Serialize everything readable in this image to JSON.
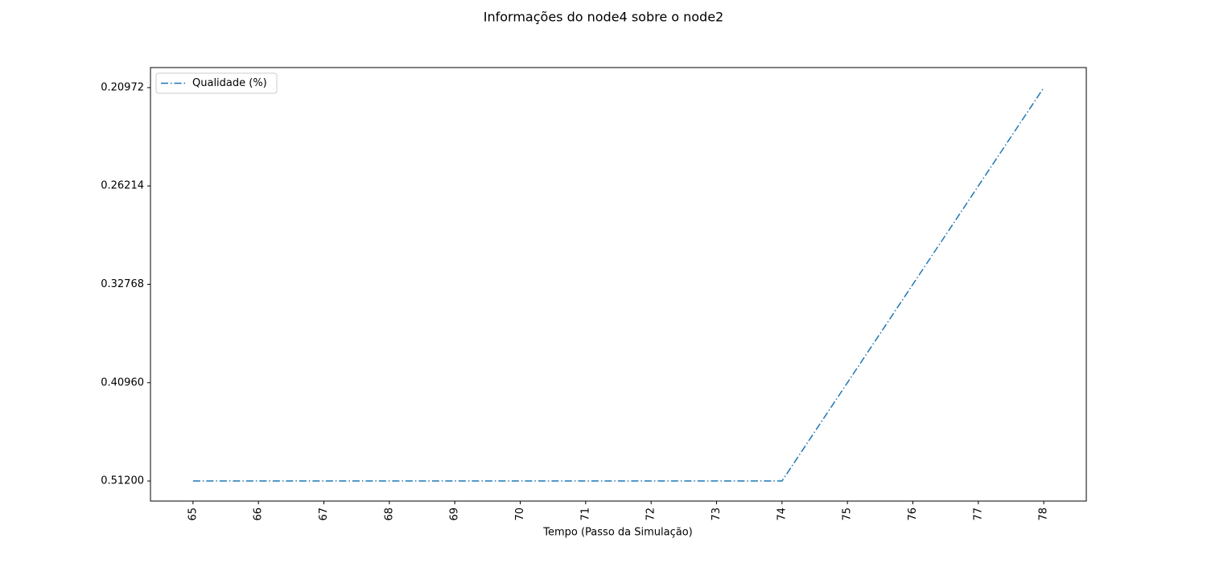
{
  "chart_data": {
    "type": "line",
    "title": "Informações do node4 sobre o node2",
    "xlabel": "Tempo (Passo da Simulação)",
    "x": [
      65,
      66,
      67,
      68,
      69,
      70,
      71,
      72,
      73,
      74,
      75,
      76,
      77,
      78
    ],
    "ycategories": [
      "0.51200",
      "0.40960",
      "0.32768",
      "0.26214",
      "0.20972"
    ],
    "series": [
      {
        "name": "Qualidade (%)",
        "color": "#1f77b4",
        "values": [
          "0.51200",
          "0.51200",
          "0.51200",
          "0.51200",
          "0.51200",
          "0.51200",
          "0.51200",
          "0.51200",
          "0.51200",
          "0.51200",
          "0.40960",
          "0.32768",
          "0.26214",
          "0.20972"
        ]
      }
    ],
    "xlim": [
      64.35,
      78.65
    ],
    "xticks": [
      65,
      66,
      67,
      68,
      69,
      70,
      71,
      72,
      73,
      74,
      75,
      76,
      77,
      78
    ],
    "legend": "upper left",
    "grid": false
  }
}
